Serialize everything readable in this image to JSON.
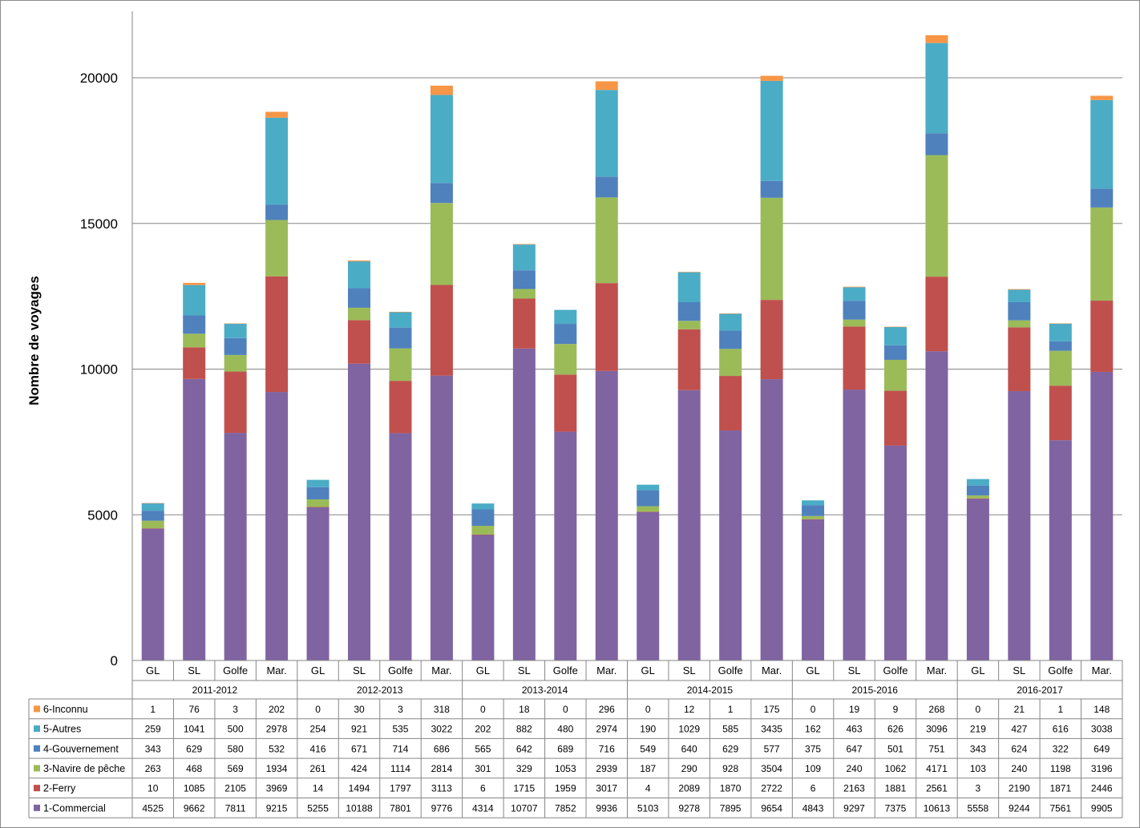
{
  "chart_data": {
    "type": "bar",
    "stacked": true,
    "ylabel": "Nombre de voyages",
    "ylim": [
      0,
      22000
    ],
    "yticks": [
      0,
      5000,
      10000,
      15000,
      20000
    ],
    "grid": true,
    "legend": "data-table",
    "groups": [
      "2011-2012",
      "2012-2013",
      "2013-2014",
      "2014-2015",
      "2015-2016",
      "2016-2017"
    ],
    "subcategories": [
      "GL",
      "SL",
      "Golfe",
      "Mar."
    ],
    "series": [
      {
        "name": "1-Commercial",
        "color": "#8064a2",
        "values": [
          4525,
          9662,
          7811,
          9215,
          5255,
          10188,
          7801,
          9776,
          4314,
          10707,
          7852,
          9936,
          5103,
          9278,
          7895,
          9654,
          4843,
          9297,
          7375,
          10613,
          5558,
          9244,
          7561,
          9905
        ]
      },
      {
        "name": "2-Ferry",
        "color": "#c0504d",
        "values": [
          10,
          1085,
          2105,
          3969,
          14,
          1494,
          1797,
          3113,
          6,
          1715,
          1959,
          3017,
          4,
          2089,
          1870,
          2722,
          6,
          2163,
          1881,
          2561,
          3,
          2190,
          1871,
          2446
        ]
      },
      {
        "name": "3-Navire de pêche",
        "color": "#9bbb59",
        "values": [
          263,
          468,
          569,
          1934,
          261,
          424,
          1114,
          2814,
          301,
          329,
          1053,
          2939,
          187,
          290,
          928,
          3504,
          109,
          240,
          1062,
          4171,
          103,
          240,
          1198,
          3196
        ]
      },
      {
        "name": "4-Gouvernement",
        "color": "#4f81bd",
        "values": [
          343,
          629,
          580,
          532,
          416,
          671,
          714,
          686,
          565,
          642,
          689,
          716,
          549,
          640,
          629,
          577,
          375,
          647,
          501,
          751,
          343,
          624,
          322,
          649
        ]
      },
      {
        "name": "5-Autres",
        "color": "#4bacc6",
        "values": [
          259,
          1041,
          500,
          2978,
          254,
          921,
          535,
          3022,
          202,
          882,
          480,
          2974,
          190,
          1029,
          585,
          3435,
          162,
          463,
          626,
          3096,
          219,
          427,
          616,
          3038
        ]
      },
      {
        "name": "6-Inconnu",
        "color": "#f79646",
        "values": [
          1,
          76,
          3,
          202,
          0,
          30,
          3,
          318,
          0,
          18,
          0,
          296,
          0,
          12,
          1,
          175,
          0,
          19,
          9,
          268,
          0,
          21,
          1,
          148
        ]
      }
    ]
  }
}
